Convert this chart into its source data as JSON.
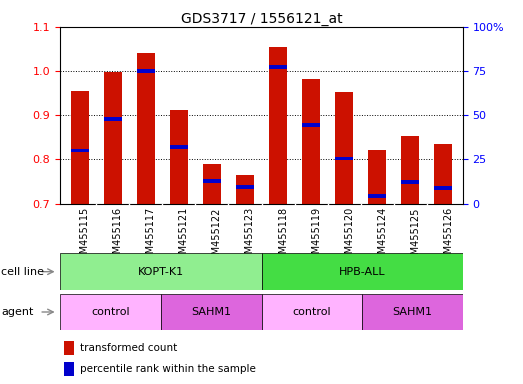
{
  "title": "GDS3717 / 1556121_at",
  "samples": [
    "GSM455115",
    "GSM455116",
    "GSM455117",
    "GSM455121",
    "GSM455122",
    "GSM455123",
    "GSM455118",
    "GSM455119",
    "GSM455120",
    "GSM455124",
    "GSM455125",
    "GSM455126"
  ],
  "red_values": [
    0.955,
    0.998,
    1.04,
    0.912,
    0.79,
    0.765,
    1.055,
    0.982,
    0.952,
    0.822,
    0.852,
    0.835
  ],
  "blue_values": [
    0.82,
    0.892,
    1.0,
    0.828,
    0.75,
    0.738,
    1.01,
    0.878,
    0.802,
    0.718,
    0.748,
    0.736
  ],
  "ylim_left": [
    0.7,
    1.1
  ],
  "ylim_right": [
    0,
    100
  ],
  "yticks_left": [
    0.7,
    0.8,
    0.9,
    1.0,
    1.1
  ],
  "yticks_right": [
    0,
    25,
    50,
    75,
    100
  ],
  "ytick_labels_right": [
    "0",
    "25",
    "50",
    "75",
    "100%"
  ],
  "cell_line_labels": [
    "KOPT-K1",
    "HPB-ALL"
  ],
  "cell_line_color_left": "#90EE90",
  "cell_line_color_right": "#44DD44",
  "agent_colors": [
    "#FFB3FF",
    "#DD66DD",
    "#FFB3FF",
    "#DD66DD"
  ],
  "agent_labels": [
    "control",
    "SAHM1",
    "control",
    "SAHM1"
  ],
  "bar_color_red": "#CC1100",
  "bar_color_blue": "#0000CC",
  "bg_color": "#CCCCCC",
  "bar_width": 0.55,
  "title_fontsize": 10,
  "tick_label_fontsize": 7,
  "annotation_fontsize": 8,
  "legend_fontsize": 7.5
}
